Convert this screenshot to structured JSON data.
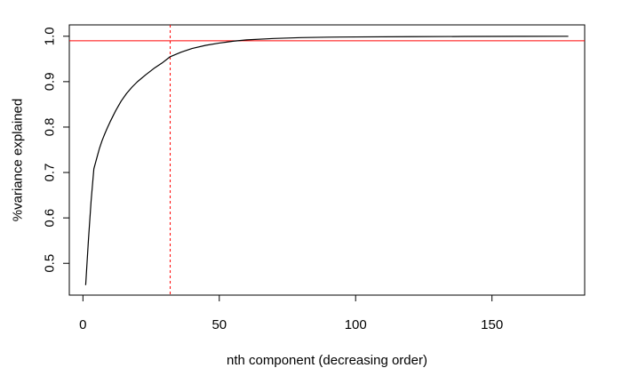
{
  "chart_data": {
    "type": "line",
    "title": "",
    "xlabel": "nth component (decreasing order)",
    "ylabel": "%variance explained",
    "xlim": [
      -5,
      184
    ],
    "ylim": [
      0.43,
      1.025
    ],
    "x_ticks": [
      0,
      50,
      100,
      150
    ],
    "y_ticks": [
      0.5,
      0.6,
      0.7,
      0.8,
      0.9,
      1.0
    ],
    "x_tick_labels": [
      "0",
      "50",
      "100",
      "150"
    ],
    "y_tick_labels": [
      "0.5",
      "0.6",
      "0.7",
      "0.8",
      "0.9",
      "1.0"
    ],
    "grid": false,
    "legend": "none",
    "colors": {
      "series": "#000000",
      "threshold_line": "#ff0000",
      "component_line": "#ff0000"
    },
    "series": [
      {
        "x": [
          1,
          2,
          3,
          4,
          5,
          6,
          7,
          8,
          9,
          10,
          12,
          14,
          16,
          18,
          20,
          23,
          26,
          29,
          32,
          36,
          40,
          45,
          50,
          55,
          60,
          70,
          80,
          90,
          100,
          120,
          140,
          160,
          178
        ],
        "values": [
          0.452,
          0.55,
          0.638,
          0.708,
          0.73,
          0.752,
          0.77,
          0.785,
          0.799,
          0.812,
          0.836,
          0.857,
          0.874,
          0.888,
          0.9,
          0.915,
          0.929,
          0.941,
          0.955,
          0.965,
          0.973,
          0.98,
          0.985,
          0.989,
          0.992,
          0.995,
          0.997,
          0.998,
          0.9985,
          0.999,
          0.9995,
          0.9998,
          0.9999
        ]
      }
    ],
    "reference_lines": [
      {
        "orientation": "horizontal",
        "value": 0.99,
        "style": "solid"
      },
      {
        "orientation": "vertical",
        "value": 32,
        "style": "dashed"
      }
    ]
  }
}
